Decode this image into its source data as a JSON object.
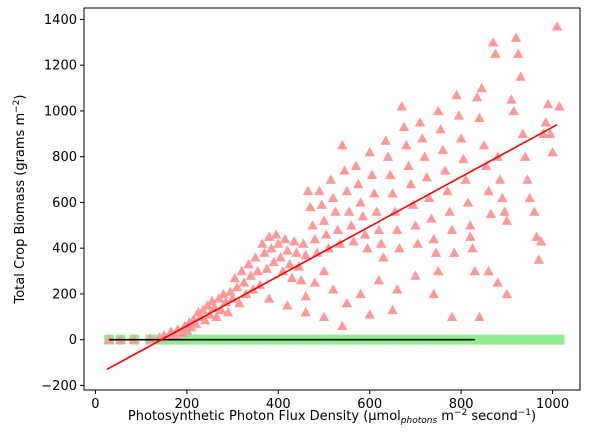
{
  "chart_data": {
    "type": "scatter",
    "xlabel": {
      "main": "Photosynthetic Photon Flux Density (µmol",
      "sub": "photons",
      "mid": " m",
      "sup1": "−2",
      "tail": " second",
      "sup2": "−1",
      "end": ")"
    },
    "ylabel": {
      "main": "Total Crop Biomass (grams m",
      "sup": "−2",
      "end": ")"
    },
    "xlim": [
      -25,
      1060
    ],
    "ylim": [
      -220,
      1450
    ],
    "xticks": [
      0,
      200,
      400,
      600,
      800,
      1000
    ],
    "yticks": [
      -200,
      0,
      200,
      400,
      600,
      800,
      1000,
      1200,
      1400
    ],
    "xtick_labels": [
      "0",
      "200",
      "400",
      "600",
      "800",
      "1000"
    ],
    "ytick_labels": [
      "−200",
      "0",
      "200",
      "400",
      "600",
      "800",
      "1000",
      "1200",
      "1400"
    ],
    "grid": false,
    "series": [
      {
        "marker": "triangle",
        "color": "#ff9999",
        "points": [
          [
            30,
            0
          ],
          [
            55,
            0
          ],
          [
            85,
            0
          ],
          [
            120,
            5
          ],
          [
            140,
            10
          ],
          [
            150,
            20
          ],
          [
            160,
            15
          ],
          [
            165,
            35
          ],
          [
            175,
            20
          ],
          [
            180,
            45
          ],
          [
            190,
            30
          ],
          [
            195,
            60
          ],
          [
            200,
            40
          ],
          [
            205,
            75
          ],
          [
            210,
            55
          ],
          [
            215,
            90
          ],
          [
            220,
            70
          ],
          [
            225,
            120
          ],
          [
            230,
            100
          ],
          [
            235,
            130
          ],
          [
            240,
            85
          ],
          [
            245,
            150
          ],
          [
            250,
            110
          ],
          [
            255,
            170
          ],
          [
            260,
            140
          ],
          [
            265,
            100
          ],
          [
            270,
            180
          ],
          [
            275,
            130
          ],
          [
            280,
            200
          ],
          [
            285,
            165
          ],
          [
            290,
            120
          ],
          [
            295,
            210
          ],
          [
            300,
            180
          ],
          [
            305,
            270
          ],
          [
            310,
            230
          ],
          [
            315,
            160
          ],
          [
            320,
            300
          ],
          [
            325,
            250
          ],
          [
            330,
            200
          ],
          [
            335,
            330
          ],
          [
            340,
            280
          ],
          [
            345,
            220
          ],
          [
            350,
            360
          ],
          [
            355,
            300
          ],
          [
            360,
            240
          ],
          [
            365,
            420
          ],
          [
            370,
            380
          ],
          [
            375,
            310
          ],
          [
            380,
            450
          ],
          [
            385,
            400
          ],
          [
            390,
            340
          ],
          [
            395,
            460
          ],
          [
            400,
            420
          ],
          [
            405,
            360
          ],
          [
            410,
            300
          ],
          [
            415,
            440
          ],
          [
            420,
            390
          ],
          [
            425,
            330
          ],
          [
            430,
            270
          ],
          [
            435,
            430
          ],
          [
            440,
            380
          ],
          [
            445,
            320
          ],
          [
            450,
            260
          ],
          [
            455,
            420
          ],
          [
            460,
            370
          ],
          [
            465,
            650
          ],
          [
            470,
            580
          ],
          [
            475,
            500
          ],
          [
            480,
            440
          ],
          [
            485,
            380
          ],
          [
            490,
            650
          ],
          [
            495,
            590
          ],
          [
            500,
            520
          ],
          [
            505,
            460
          ],
          [
            510,
            400
          ],
          [
            515,
            700
          ],
          [
            520,
            620
          ],
          [
            525,
            560
          ],
          [
            530,
            480
          ],
          [
            535,
            420
          ],
          [
            540,
            850
          ],
          [
            545,
            740
          ],
          [
            550,
            650
          ],
          [
            555,
            560
          ],
          [
            560,
            500
          ],
          [
            565,
            430
          ],
          [
            570,
            760
          ],
          [
            575,
            680
          ],
          [
            580,
            600
          ],
          [
            585,
            540
          ],
          [
            590,
            460
          ],
          [
            595,
            400
          ],
          [
            600,
            820
          ],
          [
            605,
            720
          ],
          [
            610,
            640
          ],
          [
            615,
            560
          ],
          [
            620,
            480
          ],
          [
            625,
            420
          ],
          [
            630,
            360
          ],
          [
            635,
            870
          ],
          [
            640,
            800
          ],
          [
            645,
            720
          ],
          [
            650,
            640
          ],
          [
            655,
            560
          ],
          [
            660,
            480
          ],
          [
            665,
            400
          ],
          [
            670,
            1020
          ],
          [
            675,
            930
          ],
          [
            680,
            850
          ],
          [
            685,
            760
          ],
          [
            690,
            680
          ],
          [
            695,
            590
          ],
          [
            700,
            500
          ],
          [
            705,
            420
          ],
          [
            710,
            950
          ],
          [
            715,
            880
          ],
          [
            720,
            800
          ],
          [
            725,
            710
          ],
          [
            730,
            620
          ],
          [
            735,
            530
          ],
          [
            740,
            440
          ],
          [
            745,
            380
          ],
          [
            750,
            1000
          ],
          [
            755,
            920
          ],
          [
            760,
            830
          ],
          [
            765,
            740
          ],
          [
            770,
            650
          ],
          [
            775,
            560
          ],
          [
            780,
            480
          ],
          [
            785,
            380
          ],
          [
            790,
            1070
          ],
          [
            795,
            980
          ],
          [
            800,
            880
          ],
          [
            805,
            790
          ],
          [
            810,
            700
          ],
          [
            815,
            600
          ],
          [
            820,
            500
          ],
          [
            825,
            400
          ],
          [
            830,
            300
          ],
          [
            835,
            1060
          ],
          [
            840,
            970
          ],
          [
            845,
            1100
          ],
          [
            850,
            850
          ],
          [
            855,
            760
          ],
          [
            860,
            650
          ],
          [
            865,
            550
          ],
          [
            870,
            1300
          ],
          [
            875,
            1250
          ],
          [
            880,
            800
          ],
          [
            885,
            700
          ],
          [
            890,
            620
          ],
          [
            895,
            560
          ],
          [
            900,
            520
          ],
          [
            910,
            1050
          ],
          [
            915,
            1000
          ],
          [
            920,
            1320
          ],
          [
            925,
            1250
          ],
          [
            930,
            1150
          ],
          [
            935,
            900
          ],
          [
            940,
            800
          ],
          [
            945,
            700
          ],
          [
            950,
            620
          ],
          [
            960,
            560
          ],
          [
            965,
            450
          ],
          [
            970,
            350
          ],
          [
            975,
            430
          ],
          [
            980,
            900
          ],
          [
            985,
            950
          ],
          [
            990,
            1030
          ],
          [
            995,
            900
          ],
          [
            1000,
            820
          ],
          [
            1010,
            1370
          ],
          [
            1015,
            1020
          ],
          [
            380,
            180
          ],
          [
            420,
            150
          ],
          [
            460,
            120
          ],
          [
            500,
            100
          ],
          [
            540,
            60
          ],
          [
            580,
            200
          ],
          [
            620,
            260
          ],
          [
            660,
            220
          ],
          [
            700,
            280
          ],
          [
            740,
            200
          ],
          [
            780,
            100
          ],
          [
            820,
            450
          ],
          [
            840,
            100
          ],
          [
            860,
            300
          ],
          [
            880,
            250
          ],
          [
            900,
            200
          ],
          [
            750,
            300
          ],
          [
            650,
            130
          ],
          [
            600,
            110
          ],
          [
            550,
            160
          ],
          [
            520,
            220
          ],
          [
            500,
            300
          ],
          [
            480,
            250
          ],
          [
            460,
            190
          ]
        ]
      },
      {
        "marker": "square",
        "color": "#90ee90",
        "x_values": [
          30,
          55,
          85,
          120,
          140,
          150,
          160,
          170,
          180,
          190,
          200,
          210,
          220,
          230,
          240,
          250,
          260,
          270,
          280,
          290,
          300,
          310,
          320,
          330,
          340,
          350,
          360,
          370,
          380,
          390,
          400,
          410,
          420,
          430,
          440,
          450,
          460,
          470,
          480,
          490,
          500,
          510,
          520,
          530,
          540,
          550,
          560,
          570,
          580,
          590,
          600,
          610,
          620,
          630,
          640,
          650,
          660,
          670,
          680,
          690,
          700,
          710,
          720,
          730,
          740,
          750,
          760,
          770,
          780,
          790,
          800,
          810,
          820,
          830,
          840,
          850,
          860,
          870,
          880,
          890,
          900,
          910,
          920,
          930,
          940,
          950,
          960,
          970,
          980,
          990,
          1000,
          1010,
          1015
        ],
        "y": 0
      },
      {
        "marker": "line",
        "color": "#ff0000",
        "points": [
          [
            25,
            -130
          ],
          [
            1010,
            940
          ]
        ]
      },
      {
        "marker": "line",
        "color": "#000000",
        "points": [
          [
            30,
            0
          ],
          [
            830,
            0
          ]
        ]
      }
    ]
  }
}
